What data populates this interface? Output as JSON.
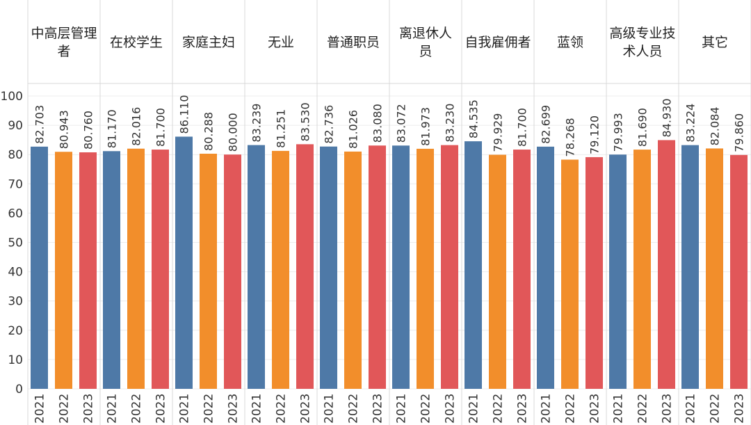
{
  "chart_data": {
    "type": "bar",
    "categories": [
      "中高层管理者",
      "在校学生",
      "家庭主妇",
      "无业",
      "普通职员",
      "离退休人员",
      "自我雇佣者",
      "蓝领",
      "高级专业技术人员",
      "其它"
    ],
    "category_label_lines": [
      [
        "中高层管理",
        "者"
      ],
      [
        "在校学生"
      ],
      [
        "家庭主妇"
      ],
      [
        "无业"
      ],
      [
        "普通职员"
      ],
      [
        "离退休人",
        "员"
      ],
      [
        "自我雇佣者"
      ],
      [
        "蓝领"
      ],
      [
        "高级专业技",
        "术人员"
      ],
      [
        "其它"
      ]
    ],
    "years": [
      "2021",
      "2022",
      "2023"
    ],
    "series": [
      {
        "year": "2021",
        "color": "#4e79a7",
        "values": [
          82.703,
          81.17,
          86.11,
          83.239,
          82.736,
          83.072,
          84.535,
          82.699,
          79.993,
          83.224
        ]
      },
      {
        "year": "2022",
        "color": "#f28e2b",
        "values": [
          80.943,
          82.016,
          80.288,
          81.251,
          81.026,
          81.973,
          79.929,
          78.268,
          81.69,
          82.084
        ]
      },
      {
        "year": "2023",
        "color": "#e15759",
        "values": [
          80.76,
          81.7,
          80.0,
          83.53,
          83.08,
          83.23,
          81.7,
          79.12,
          84.93,
          79.86
        ]
      }
    ],
    "value_labels": [
      [
        "82.703",
        "80.943",
        "80.760"
      ],
      [
        "81.170",
        "82.016",
        "81.700"
      ],
      [
        "86.110",
        "80.288",
        "80.000"
      ],
      [
        "83.239",
        "81.251",
        "83.530"
      ],
      [
        "82.736",
        "81.026",
        "83.080"
      ],
      [
        "83.072",
        "81.973",
        "83.230"
      ],
      [
        "84.535",
        "79.929",
        "81.700"
      ],
      [
        "82.699",
        "78.268",
        "79.120"
      ],
      [
        "79.993",
        "81.690",
        "84.930"
      ],
      [
        "83.224",
        "82.084",
        "79.860"
      ]
    ],
    "y_ticks": [
      "0",
      "10",
      "20",
      "30",
      "40",
      "50",
      "60",
      "70",
      "80",
      "90",
      "100"
    ],
    "ylim": [
      0,
      100
    ],
    "grid": true,
    "legend": "none"
  }
}
